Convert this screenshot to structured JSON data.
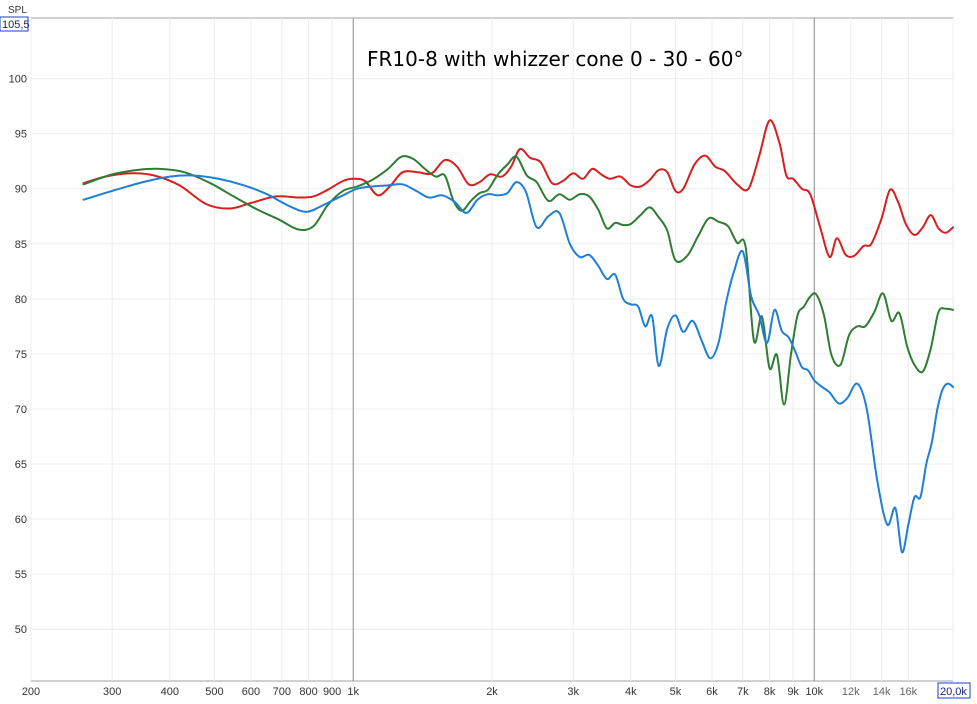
{
  "chart_data": {
    "type": "line",
    "title": "FR10-8 with whizzer cone 0 - 30 - 60°",
    "ylabel": "SPL",
    "xlabel": "",
    "x_scale": "log",
    "xlim": [
      200,
      20000
    ],
    "ylim": [
      45.3,
      105.5
    ],
    "y_max_label": "105,5",
    "x_max_label": "20,0k",
    "grid": true,
    "legend": "none",
    "y_ticks": [
      50,
      55,
      60,
      65,
      70,
      75,
      80,
      85,
      90,
      95,
      100
    ],
    "x_ticks": [
      {
        "value": 200,
        "label": "200",
        "major": true
      },
      {
        "value": 300,
        "label": "300",
        "major": true
      },
      {
        "value": 400,
        "label": "400",
        "major": true
      },
      {
        "value": 500,
        "label": "500",
        "major": true
      },
      {
        "value": 600,
        "label": "600",
        "major": true
      },
      {
        "value": 700,
        "label": "700",
        "major": true
      },
      {
        "value": 800,
        "label": "800",
        "major": true
      },
      {
        "value": 900,
        "label": "900",
        "major": true
      },
      {
        "value": 1000,
        "label": "1k",
        "major": true
      },
      {
        "value": 2000,
        "label": "2k",
        "major": true
      },
      {
        "value": 3000,
        "label": "3k",
        "major": true
      },
      {
        "value": 4000,
        "label": "4k",
        "major": true
      },
      {
        "value": 5000,
        "label": "5k",
        "major": true
      },
      {
        "value": 6000,
        "label": "6k",
        "major": true
      },
      {
        "value": 7000,
        "label": "7k",
        "major": true
      },
      {
        "value": 8000,
        "label": "8k",
        "major": true
      },
      {
        "value": 9000,
        "label": "9k",
        "major": true
      },
      {
        "value": 10000,
        "label": "10k",
        "major": true
      },
      {
        "value": 12000,
        "label": "12k",
        "major": false
      },
      {
        "value": 14000,
        "label": "14k",
        "major": false
      },
      {
        "value": 16000,
        "label": "16k",
        "major": false
      },
      {
        "value": 20000,
        "label": "",
        "major": true
      }
    ],
    "series": [
      {
        "color": "#d81e1e",
        "x": [
          260,
          290,
          330,
          370,
          420,
          480,
          540,
          600,
          680,
          760,
          820,
          880,
          950,
          1000,
          1060,
          1130,
          1200,
          1280,
          1380,
          1480,
          1580,
          1680,
          1780,
          1880,
          1980,
          2100,
          2200,
          2300,
          2420,
          2550,
          2700,
          2850,
          3000,
          3150,
          3300,
          3450,
          3600,
          3800,
          4000,
          4200,
          4400,
          4600,
          4800,
          5000,
          5200,
          5500,
          5800,
          6100,
          6400,
          6800,
          7200,
          7600,
          8000,
          8400,
          8700,
          9000,
          9400,
          9800,
          10300,
          10800,
          11200,
          11700,
          12200,
          12800,
          13300,
          14000,
          14600,
          15200,
          15800,
          16500,
          17200,
          17900,
          18600,
          19300,
          20000
        ],
        "y": [
          90.5,
          91.1,
          91.4,
          91.2,
          90.3,
          88.6,
          88.2,
          88.7,
          89.3,
          89.2,
          89.3,
          89.9,
          90.7,
          90.9,
          90.7,
          89.4,
          90.2,
          91.5,
          91.5,
          91.4,
          92.6,
          92.0,
          90.4,
          90.6,
          91.3,
          91.1,
          92.0,
          93.6,
          92.8,
          92.4,
          90.5,
          90.7,
          91.4,
          90.9,
          91.8,
          91.3,
          90.9,
          91.1,
          90.3,
          90.2,
          90.8,
          91.7,
          91.5,
          89.8,
          90.0,
          92.2,
          93.0,
          92.0,
          91.6,
          90.4,
          90.0,
          93.0,
          96.2,
          94.2,
          91.2,
          90.9,
          90.0,
          89.5,
          86.5,
          83.8,
          85.5,
          84.0,
          83.9,
          84.8,
          85.0,
          87.3,
          89.9,
          88.8,
          86.8,
          85.8,
          86.5,
          87.6,
          86.4,
          86.0,
          86.5
        ]
      },
      {
        "color": "#2e7d32",
        "x": [
          260,
          300,
          340,
          380,
          430,
          490,
          550,
          620,
          690,
          760,
          820,
          880,
          950,
          1020,
          1100,
          1190,
          1270,
          1350,
          1430,
          1510,
          1580,
          1650,
          1720,
          1800,
          1880,
          1960,
          2060,
          2160,
          2260,
          2380,
          2500,
          2650,
          2800,
          2950,
          3100,
          3250,
          3400,
          3550,
          3700,
          3850,
          4000,
          4200,
          4400,
          4600,
          4800,
          5000,
          5300,
          5600,
          5900,
          6200,
          6500,
          6800,
          7100,
          7400,
          7700,
          8000,
          8300,
          8600,
          8900,
          9200,
          9500,
          9800,
          10100,
          10500,
          10900,
          11400,
          11900,
          12400,
          12900,
          13500,
          14100,
          14700,
          15300,
          15900,
          16500,
          17200,
          17900,
          18600,
          19300,
          20000
        ],
        "y": [
          90.4,
          91.3,
          91.7,
          91.8,
          91.5,
          90.5,
          89.3,
          88.1,
          87.2,
          86.3,
          86.6,
          88.5,
          89.8,
          90.2,
          90.8,
          91.8,
          92.9,
          92.7,
          91.8,
          91.1,
          91.2,
          88.9,
          88.0,
          88.9,
          89.6,
          89.9,
          91.3,
          92.2,
          92.9,
          91.2,
          90.6,
          88.9,
          89.5,
          89.0,
          89.5,
          89.3,
          88.1,
          86.4,
          86.9,
          86.7,
          86.8,
          87.6,
          88.3,
          87.4,
          86.2,
          83.5,
          83.9,
          85.7,
          87.3,
          87.0,
          86.6,
          85.1,
          84.7,
          76.2,
          78.4,
          73.7,
          74.9,
          70.4,
          74.9,
          78.5,
          79.3,
          80.2,
          80.4,
          78.5,
          74.9,
          74.0,
          76.7,
          77.5,
          77.5,
          78.8,
          80.5,
          78.0,
          78.7,
          75.7,
          74.0,
          73.4,
          75.5,
          78.8,
          79.1,
          79.0
        ]
      },
      {
        "color": "#1e7fd6",
        "x": [
          260,
          300,
          350,
          400,
          450,
          510,
          580,
          650,
          720,
          790,
          860,
          940,
          1020,
          1100,
          1190,
          1280,
          1370,
          1460,
          1560,
          1660,
          1760,
          1860,
          1960,
          2060,
          2160,
          2260,
          2370,
          2500,
          2650,
          2800,
          2950,
          3100,
          3250,
          3400,
          3550,
          3700,
          3850,
          4000,
          4150,
          4300,
          4450,
          4600,
          4800,
          5000,
          5200,
          5450,
          5700,
          5950,
          6200,
          6450,
          6700,
          7000,
          7300,
          7600,
          7900,
          8200,
          8500,
          8800,
          9100,
          9400,
          9700,
          10000,
          10400,
          10800,
          11300,
          11800,
          12400,
          13000,
          13700,
          14400,
          15000,
          15500,
          16000,
          16500,
          17000,
          17500,
          18000,
          18500,
          19000,
          19500,
          20000
        ],
        "y": [
          89.0,
          89.8,
          90.6,
          91.1,
          91.2,
          90.9,
          90.3,
          89.5,
          88.5,
          87.9,
          88.5,
          89.3,
          90.0,
          90.2,
          90.3,
          90.4,
          89.8,
          89.2,
          89.4,
          88.8,
          87.8,
          89.0,
          89.5,
          89.4,
          89.6,
          90.6,
          89.7,
          86.5,
          87.5,
          87.8,
          85.0,
          83.8,
          84.0,
          83.0,
          81.8,
          82.2,
          80.0,
          79.5,
          79.3,
          77.5,
          78.4,
          73.9,
          77.3,
          78.5,
          77.0,
          78.0,
          76.2,
          74.6,
          76.0,
          79.8,
          82.5,
          84.3,
          80.2,
          78.5,
          76.0,
          79.0,
          77.1,
          76.5,
          75.2,
          73.8,
          73.5,
          72.6,
          72.0,
          71.5,
          70.5,
          71.0,
          72.3,
          70.0,
          63.5,
          59.5,
          61.0,
          57.0,
          59.5,
          62.0,
          62.0,
          65.0,
          67.0,
          70.0,
          71.8,
          72.3,
          72.0
        ]
      }
    ]
  }
}
